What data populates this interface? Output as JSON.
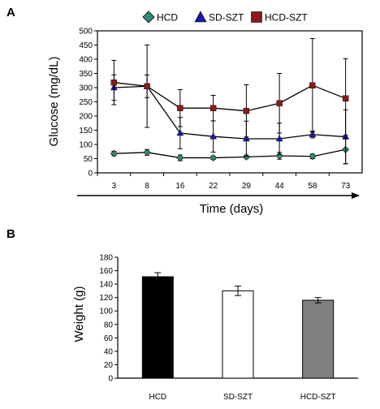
{
  "chart_data": [
    {
      "type": "line",
      "panel_label": "A",
      "title": "",
      "xlabel": "Time (days)",
      "ylabel": "Glucose  (mg/dL)",
      "categories": [
        "3",
        "8",
        "16",
        "22",
        "29",
        "44",
        "58",
        "73"
      ],
      "ylim": [
        0,
        500
      ],
      "yticks": [
        0,
        50,
        100,
        150,
        200,
        250,
        300,
        350,
        400,
        450,
        500
      ],
      "legend_position": "top",
      "series": [
        {
          "name": "HCD",
          "marker": "diamond",
          "color": "#2e8b7a",
          "values": [
            68,
            72,
            53,
            53,
            56,
            60,
            58,
            82
          ],
          "errors": [
            8,
            10,
            10,
            6,
            5,
            12,
            8,
            50
          ]
        },
        {
          "name": "SD-SZT",
          "marker": "triangle",
          "color": "#1a1aa6",
          "values": [
            300,
            305,
            140,
            128,
            120,
            120,
            135,
            127
          ],
          "errors": [
            45,
            40,
            55,
            55,
            62,
            55,
            12,
            95
          ]
        },
        {
          "name": "HCD-SZT",
          "marker": "square",
          "color": "#8b1a1a",
          "values": [
            318,
            305,
            228,
            228,
            218,
            245,
            308,
            262
          ],
          "errors": [
            78,
            145,
            65,
            45,
            92,
            105,
            165,
            140
          ]
        }
      ]
    },
    {
      "type": "bar",
      "panel_label": "B",
      "title": "",
      "xlabel": "",
      "ylabel": "Weight (g)",
      "categories": [
        "HCD",
        "SD-SZT",
        "HCD-SZT"
      ],
      "ylim": [
        0,
        180
      ],
      "yticks": [
        0,
        20,
        40,
        60,
        80,
        100,
        120,
        140,
        160,
        180
      ],
      "values": [
        151,
        130,
        116
      ],
      "errors": [
        6,
        7,
        4
      ],
      "colors": [
        "#000000",
        "#ffffff",
        "#808080"
      ]
    }
  ]
}
